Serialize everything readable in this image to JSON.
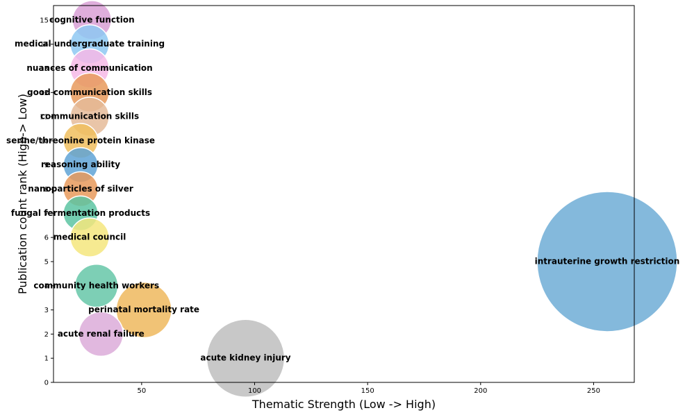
{
  "chart_data": {
    "type": "scatter",
    "title": "",
    "xlabel": "Thematic Strength (Low -> High)",
    "ylabel": "Publication count rank (High-> Low)",
    "xlim": [
      11,
      268
    ],
    "ylim": [
      0,
      15.6
    ],
    "xticks": [
      50,
      100,
      150,
      200,
      250
    ],
    "yticks": [
      0,
      1,
      2,
      3,
      4,
      5,
      6,
      7,
      8,
      9,
      10,
      11,
      12,
      13,
      14,
      15
    ],
    "grid": false,
    "legend": "none",
    "points": [
      {
        "label": "cognitive function",
        "x": 28,
        "y": 15,
        "size": 28,
        "color": "#d9a0d6"
      },
      {
        "label": "medical undergraduate training",
        "x": 27,
        "y": 14,
        "size": 28,
        "color": "#8ec8f2"
      },
      {
        "label": "nuances of communication",
        "x": 27,
        "y": 13,
        "size": 28,
        "color": "#f6b8e6"
      },
      {
        "label": "good communication skills",
        "x": 27,
        "y": 12,
        "size": 28,
        "color": "#e89a5c"
      },
      {
        "label": "communication skills",
        "x": 27,
        "y": 11,
        "size": 28,
        "color": "#e5bb99"
      },
      {
        "label": "serine/threonine protein kinase",
        "x": 23,
        "y": 10,
        "size": 25,
        "color": "#f0be5e"
      },
      {
        "label": "reasoning ability",
        "x": 23,
        "y": 9,
        "size": 25,
        "color": "#5fa3d6"
      },
      {
        "label": "nanoparticles of silver",
        "x": 23,
        "y": 8,
        "size": 25,
        "color": "#e89a5c"
      },
      {
        "label": "fungal fermentation products",
        "x": 23,
        "y": 7,
        "size": 25,
        "color": "#5cc4a2"
      },
      {
        "label": "medical council",
        "x": 27,
        "y": 6,
        "size": 28,
        "color": "#f4e67e"
      },
      {
        "label": "intrauterine growth restriction",
        "x": 256,
        "y": 5,
        "size": 101,
        "color": "#6fadd6"
      },
      {
        "label": "community health workers",
        "x": 30,
        "y": 4,
        "size": 31,
        "color": "#66c7a8"
      },
      {
        "label": "perinatal mortality rate",
        "x": 51,
        "y": 3,
        "size": 40,
        "color": "#eeb85e"
      },
      {
        "label": "acute renal failure",
        "x": 32,
        "y": 2,
        "size": 32,
        "color": "#dcacd9"
      },
      {
        "label": "acute kidney injury",
        "x": 96,
        "y": 1,
        "size": 56,
        "color": "#bebebe"
      }
    ]
  }
}
